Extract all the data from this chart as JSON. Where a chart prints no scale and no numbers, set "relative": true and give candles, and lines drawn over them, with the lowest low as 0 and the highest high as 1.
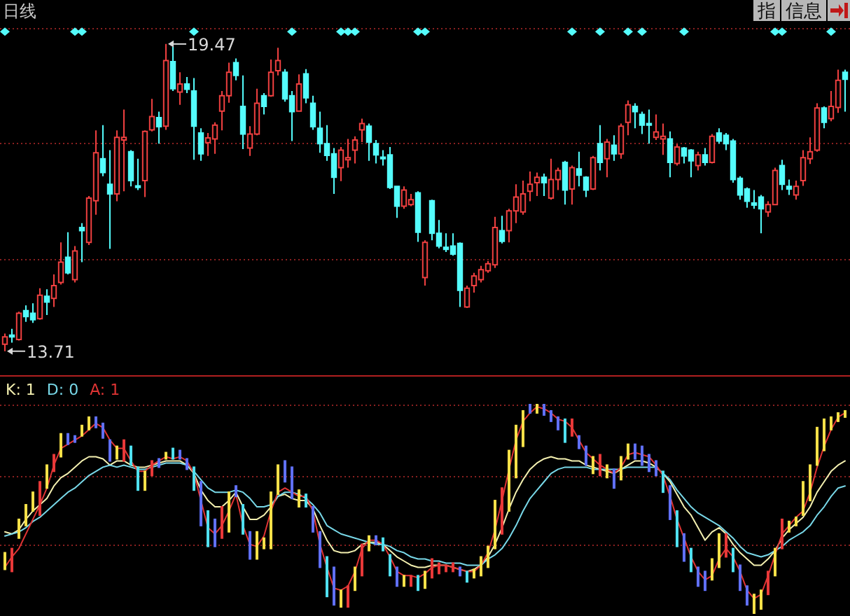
{
  "chart_data": [
    {
      "type": "candlestick",
      "title": "日线",
      "categories": [
        null,
        null,
        null,
        null,
        null,
        null,
        null,
        null,
        null,
        null,
        null,
        null,
        null,
        null,
        null,
        null,
        null,
        null,
        null,
        null,
        null,
        null,
        null,
        null,
        null,
        null,
        null,
        null,
        null,
        null,
        null,
        null,
        null,
        null,
        null,
        null,
        null,
        null,
        null,
        null,
        null,
        null,
        null,
        null,
        null,
        null,
        null,
        null,
        null,
        null,
        null,
        null,
        null,
        null,
        null,
        null,
        null,
        null,
        null,
        null,
        null,
        null,
        null,
        null,
        null,
        null,
        null,
        null,
        null,
        null,
        null,
        null,
        null,
        null,
        null,
        null,
        null,
        null,
        null,
        null,
        null,
        null,
        null,
        null,
        null,
        null,
        null,
        null,
        null,
        null,
        null,
        null,
        null,
        null,
        null,
        null,
        null,
        null,
        null,
        null,
        null,
        null,
        null,
        null,
        null,
        null,
        null,
        null,
        null,
        null,
        null,
        null,
        null,
        null,
        null,
        null,
        null,
        null,
        null,
        null,
        null
      ],
      "ohlc": [
        [
          13.84,
          14.04,
          13.71,
          13.98
        ],
        [
          14.01,
          14.13,
          13.87,
          13.98
        ],
        [
          13.93,
          14.45,
          13.91,
          14.42
        ],
        [
          14.47,
          14.57,
          14.26,
          14.36
        ],
        [
          14.42,
          14.61,
          14.24,
          14.3
        ],
        [
          14.32,
          14.89,
          14.3,
          14.76
        ],
        [
          14.74,
          14.87,
          14.39,
          14.63
        ],
        [
          14.7,
          15.15,
          14.54,
          14.94
        ],
        [
          15.0,
          15.75,
          14.96,
          15.38
        ],
        [
          15.47,
          15.94,
          15.15,
          15.18
        ],
        [
          15.05,
          15.68,
          15.0,
          15.59
        ],
        [
          16.03,
          16.11,
          15.38,
          15.97
        ],
        [
          15.75,
          16.62,
          15.7,
          16.58
        ],
        [
          16.53,
          17.85,
          16.27,
          17.43
        ],
        [
          17.32,
          17.95,
          16.99,
          17.06
        ],
        [
          16.84,
          17.48,
          15.63,
          16.66
        ],
        [
          16.66,
          17.85,
          16.52,
          17.72
        ],
        [
          17.67,
          18.24,
          16.71,
          17.72
        ],
        [
          17.45,
          17.48,
          16.8,
          16.91
        ],
        [
          16.81,
          17.32,
          16.73,
          16.78
        ],
        [
          16.91,
          17.85,
          16.6,
          17.83
        ],
        [
          17.86,
          18.44,
          17.83,
          18.11
        ],
        [
          18.09,
          18.2,
          17.6,
          17.92
        ],
        [
          17.93,
          19.47,
          17.86,
          19.16
        ],
        [
          19.14,
          19.42,
          18.59,
          18.63
        ],
        [
          18.57,
          18.94,
          18.33,
          18.72
        ],
        [
          18.72,
          18.85,
          18.55,
          18.62
        ],
        [
          18.59,
          18.83,
          17.3,
          17.93
        ],
        [
          17.8,
          17.89,
          17.28,
          17.41
        ],
        [
          17.62,
          17.8,
          17.37,
          17.71
        ],
        [
          17.69,
          18.0,
          17.41,
          17.95
        ],
        [
          18.21,
          18.59,
          17.85,
          18.5
        ],
        [
          18.5,
          19.12,
          18.37,
          18.94
        ],
        [
          19.12,
          19.2,
          18.79,
          18.88
        ],
        [
          18.3,
          18.88,
          17.5,
          17.78
        ],
        [
          17.52,
          17.93,
          17.37,
          17.78
        ],
        [
          17.78,
          18.63,
          17.76,
          18.36
        ],
        [
          18.5,
          18.55,
          18.15,
          18.3
        ],
        [
          18.5,
          19.18,
          18.48,
          18.94
        ],
        [
          18.97,
          19.4,
          18.88,
          19.16
        ],
        [
          18.94,
          19.0,
          18.39,
          18.44
        ],
        [
          18.5,
          18.59,
          17.65,
          18.2
        ],
        [
          18.21,
          18.9,
          18.2,
          18.72
        ],
        [
          18.91,
          19.0,
          18.36,
          18.46
        ],
        [
          18.36,
          18.5,
          17.86,
          17.92
        ],
        [
          17.89,
          18.2,
          17.43,
          17.6
        ],
        [
          17.6,
          17.95,
          17.28,
          17.38
        ],
        [
          17.41,
          17.52,
          16.66,
          16.97
        ],
        [
          17.15,
          17.54,
          16.9,
          17.48
        ],
        [
          17.3,
          17.69,
          17.15,
          17.34
        ],
        [
          17.48,
          17.74,
          17.23,
          17.67
        ],
        [
          17.86,
          18.07,
          17.63,
          17.98
        ],
        [
          17.93,
          17.98,
          17.28,
          17.63
        ],
        [
          17.6,
          17.67,
          17.23,
          17.39
        ],
        [
          17.35,
          17.48,
          17.19,
          17.32
        ],
        [
          17.39,
          17.54,
          16.75,
          16.78
        ],
        [
          16.8,
          16.81,
          16.21,
          16.43
        ],
        [
          16.43,
          16.8,
          16.38,
          16.73
        ],
        [
          16.46,
          16.66,
          16.43,
          16.55
        ],
        [
          16.68,
          16.71,
          15.76,
          15.94
        ],
        [
          15.09,
          15.79,
          14.94,
          15.75
        ],
        [
          16.53,
          16.55,
          15.79,
          15.92
        ],
        [
          15.92,
          16.17,
          15.64,
          15.68
        ],
        [
          15.66,
          15.92,
          15.57,
          15.62
        ],
        [
          15.68,
          15.92,
          15.5,
          15.53
        ],
        [
          15.73,
          15.75,
          14.54,
          14.85
        ],
        [
          14.54,
          14.94,
          14.52,
          14.89
        ],
        [
          14.94,
          15.18,
          14.81,
          15.12
        ],
        [
          15.05,
          15.31,
          15.0,
          15.24
        ],
        [
          15.22,
          15.4,
          15.18,
          15.35
        ],
        [
          15.33,
          16.23,
          15.27,
          16.03
        ],
        [
          15.97,
          16.25,
          15.73,
          15.77
        ],
        [
          15.97,
          16.38,
          15.75,
          16.34
        ],
        [
          16.34,
          16.84,
          16.11,
          16.6
        ],
        [
          16.32,
          16.91,
          16.27,
          16.66
        ],
        [
          16.71,
          17.08,
          16.52,
          16.84
        ],
        [
          16.87,
          17.06,
          16.62,
          16.97
        ],
        [
          16.97,
          17.04,
          16.62,
          16.87
        ],
        [
          16.58,
          17.32,
          16.55,
          16.93
        ],
        [
          16.93,
          17.15,
          16.73,
          17.1
        ],
        [
          17.25,
          17.28,
          16.46,
          16.73
        ],
        [
          16.75,
          17.19,
          16.46,
          17.15
        ],
        [
          17.13,
          17.45,
          16.8,
          17.01
        ],
        [
          16.97,
          16.99,
          16.6,
          16.73
        ],
        [
          16.75,
          17.37,
          16.73,
          17.34
        ],
        [
          17.6,
          17.95,
          17.1,
          17.25
        ],
        [
          17.32,
          17.69,
          16.97,
          17.63
        ],
        [
          17.57,
          17.76,
          17.28,
          17.41
        ],
        [
          17.41,
          17.98,
          17.32,
          17.93
        ],
        [
          18.0,
          18.41,
          17.76,
          18.33
        ],
        [
          18.3,
          18.36,
          17.89,
          18.2
        ],
        [
          18.15,
          18.2,
          17.78,
          17.95
        ],
        [
          17.98,
          18.24,
          17.6,
          17.95
        ],
        [
          17.72,
          18.15,
          17.67,
          17.82
        ],
        [
          17.69,
          17.98,
          17.39,
          17.74
        ],
        [
          17.69,
          17.83,
          16.97,
          17.25
        ],
        [
          17.23,
          17.59,
          17.19,
          17.54
        ],
        [
          17.52,
          17.54,
          17.23,
          17.37
        ],
        [
          17.48,
          17.5,
          16.97,
          17.28
        ],
        [
          17.19,
          17.45,
          17.1,
          17.39
        ],
        [
          17.39,
          17.52,
          17.19,
          17.25
        ],
        [
          17.25,
          17.78,
          17.23,
          17.74
        ],
        [
          17.8,
          17.89,
          17.6,
          17.65
        ],
        [
          17.76,
          17.8,
          17.48,
          17.6
        ],
        [
          17.65,
          17.69,
          16.87,
          16.93
        ],
        [
          16.95,
          16.99,
          16.55,
          16.64
        ],
        [
          16.75,
          16.78,
          16.4,
          16.52
        ],
        [
          16.49,
          16.73,
          16.38,
          16.45
        ],
        [
          16.6,
          16.64,
          15.92,
          16.38
        ],
        [
          16.32,
          16.52,
          16.23,
          16.46
        ],
        [
          16.46,
          17.15,
          16.45,
          17.1
        ],
        [
          17.19,
          17.3,
          16.73,
          16.84
        ],
        [
          16.8,
          16.93,
          16.64,
          16.75
        ],
        [
          16.64,
          16.91,
          16.55,
          16.8
        ],
        [
          16.91,
          17.48,
          16.81,
          17.34
        ],
        [
          17.32,
          17.72,
          17.22,
          17.45
        ],
        [
          17.48,
          18.36,
          17.45,
          18.27
        ],
        [
          18.27,
          18.3,
          17.89,
          18.0
        ],
        [
          18.07,
          18.59,
          18.02,
          18.3
        ],
        [
          18.28,
          18.99,
          18.18,
          18.79
        ],
        [
          18.94,
          18.99,
          18.2,
          18.81
        ]
      ],
      "colors": [
        "#f04040",
        "#54fcfc",
        "#f04040",
        "#54fcfc",
        "#54fcfc",
        "#f04040",
        "#54fcfc",
        "#f04040",
        "#f04040",
        "#54fcfc",
        "#f04040",
        "#54fcfc",
        "#f04040",
        "#f04040",
        "#54fcfc",
        "#54fcfc",
        "#f04040",
        "#f04040",
        "#54fcfc",
        "#54fcfc",
        "#f04040",
        "#f04040",
        "#54fcfc",
        "#f04040",
        "#54fcfc",
        "#f04040",
        "#54fcfc",
        "#54fcfc",
        "#54fcfc",
        "#f04040",
        "#f04040",
        "#f04040",
        "#f04040",
        "#54fcfc",
        "#54fcfc",
        "#f04040",
        "#f04040",
        "#54fcfc",
        "#f04040",
        "#f04040",
        "#54fcfc",
        "#54fcfc",
        "#f04040",
        "#54fcfc",
        "#54fcfc",
        "#54fcfc",
        "#54fcfc",
        "#54fcfc",
        "#f04040",
        "#f04040",
        "#f04040",
        "#f04040",
        "#54fcfc",
        "#54fcfc",
        "#54fcfc",
        "#54fcfc",
        "#54fcfc",
        "#f04040",
        "#f04040",
        "#54fcfc",
        "#f04040",
        "#54fcfc",
        "#54fcfc",
        "#54fcfc",
        "#54fcfc",
        "#54fcfc",
        "#f04040",
        "#f04040",
        "#f04040",
        "#f04040",
        "#f04040",
        "#54fcfc",
        "#f04040",
        "#f04040",
        "#f04040",
        "#f04040",
        "#f04040",
        "#54fcfc",
        "#f04040",
        "#f04040",
        "#54fcfc",
        "#f04040",
        "#54fcfc",
        "#54fcfc",
        "#f04040",
        "#54fcfc",
        "#f04040",
        "#54fcfc",
        "#f04040",
        "#f04040",
        "#54fcfc",
        "#54fcfc",
        "#54fcfc",
        "#f04040",
        "#f04040",
        "#54fcfc",
        "#f04040",
        "#54fcfc",
        "#54fcfc",
        "#f04040",
        "#54fcfc",
        "#f04040",
        "#54fcfc",
        "#54fcfc",
        "#54fcfc",
        "#54fcfc",
        "#54fcfc",
        "#54fcfc",
        "#54fcfc",
        "#f04040",
        "#f04040",
        "#54fcfc",
        "#54fcfc",
        "#f04040",
        "#f04040",
        "#f04040",
        "#f04040",
        "#54fcfc",
        "#f04040",
        "#f04040",
        "#54fcfc"
      ],
      "ylim": [
        13.26,
        19.77
      ],
      "yticks": [
        {
          "value": 15.44,
          "label": null
        },
        {
          "value": 17.63,
          "label": null
        },
        {
          "value": 19.77,
          "label": null
        }
      ],
      "grid": "y",
      "series": [
        {
          "type": "scatter",
          "color": "#54fcfc",
          "marker": "diamond",
          "values": [
            19.7,
            null,
            null,
            null,
            null,
            null,
            null,
            null,
            null,
            null,
            19.7,
            19.7,
            null,
            null,
            null,
            null,
            null,
            null,
            null,
            null,
            null,
            null,
            null,
            null,
            null,
            null,
            null,
            19.7,
            null,
            null,
            null,
            null,
            null,
            null,
            null,
            null,
            null,
            null,
            null,
            null,
            null,
            19.7,
            null,
            null,
            null,
            null,
            null,
            null,
            19.7,
            19.7,
            19.7,
            null,
            null,
            null,
            null,
            null,
            null,
            null,
            null,
            19.7,
            19.7,
            null,
            null,
            null,
            null,
            null,
            null,
            null,
            null,
            null,
            null,
            null,
            null,
            null,
            null,
            null,
            null,
            null,
            null,
            null,
            null,
            19.7,
            null,
            null,
            null,
            19.7,
            null,
            null,
            null,
            19.7,
            null,
            19.7,
            null,
            null,
            null,
            null,
            null,
            19.7,
            null,
            null,
            null,
            null,
            null,
            null,
            null,
            null,
            null,
            null,
            null,
            null,
            19.7,
            19.7,
            null,
            null,
            null,
            null,
            null,
            null,
            19.7,
            null,
            null
          ]
        }
      ],
      "annotations": [
        "19.47",
        "13.71",
        "指",
        "信息"
      ]
    },
    {
      "type": "candlestick",
      "relative": true,
      "categories": [
        null,
        null,
        null,
        null,
        null,
        null,
        null,
        null,
        null,
        null,
        null,
        null,
        null,
        null,
        null,
        null,
        null,
        null,
        null,
        null,
        null,
        null,
        null,
        null,
        null,
        null,
        null,
        null,
        null,
        null,
        null,
        null,
        null,
        null,
        null,
        null,
        null,
        null,
        null,
        null,
        null,
        null,
        null,
        null,
        null,
        null,
        null,
        null,
        null,
        null,
        null,
        null,
        null,
        null,
        null,
        null,
        null,
        null,
        null,
        null,
        null,
        null,
        null,
        null,
        null,
        null,
        null,
        null,
        null,
        null,
        null,
        null,
        null,
        null,
        null,
        null,
        null,
        null,
        null,
        null,
        null,
        null,
        null,
        null,
        null,
        null,
        null,
        null,
        null,
        null,
        null,
        null,
        null,
        null,
        null,
        null,
        null,
        null,
        null,
        null,
        null,
        null,
        null,
        null,
        null,
        null,
        null,
        null,
        null,
        null,
        null,
        null,
        null,
        null,
        null,
        null,
        null,
        null,
        null,
        null,
        null
      ],
      "ohlc": [
        [
          0.29,
          0.29,
          0.21,
          0.21
        ],
        [
          0.31,
          0.31,
          0.2,
          0.2
        ],
        [
          0.45,
          0.45,
          0.36,
          0.36
        ],
        [
          0.52,
          0.52,
          0.42,
          0.42
        ],
        [
          0.58,
          0.58,
          0.49,
          0.49
        ],
        [
          0.63,
          0.63,
          0.47,
          0.47
        ],
        [
          0.71,
          0.71,
          0.6,
          0.6
        ],
        [
          0.76,
          0.76,
          0.68,
          0.68
        ],
        [
          0.86,
          0.86,
          0.75,
          0.75
        ],
        [
          0.86,
          0.86,
          0.81,
          0.81
        ],
        [
          0.85,
          0.85,
          0.82,
          0.82
        ],
        [
          0.9,
          0.9,
          0.85,
          0.85
        ],
        [
          0.94,
          0.94,
          0.88,
          0.88
        ],
        [
          0.94,
          0.94,
          0.89,
          0.89
        ],
        [
          0.91,
          0.91,
          0.84,
          0.84
        ],
        [
          0.83,
          0.83,
          0.73,
          0.73
        ],
        [
          0.8,
          0.8,
          0.74,
          0.74
        ],
        [
          0.83,
          0.83,
          0.73,
          0.73
        ],
        [
          0.8,
          0.8,
          0.71,
          0.71
        ],
        [
          0.7,
          0.7,
          0.59,
          0.59
        ],
        [
          0.68,
          0.68,
          0.59,
          0.59
        ],
        [
          0.73,
          0.73,
          0.66,
          0.66
        ],
        [
          0.74,
          0.74,
          0.7,
          0.7
        ],
        [
          0.77,
          0.77,
          0.74,
          0.74
        ],
        [
          0.79,
          0.79,
          0.74,
          0.74
        ],
        [
          0.78,
          0.78,
          0.74,
          0.74
        ],
        [
          0.74,
          0.74,
          0.69,
          0.69
        ],
        [
          0.7,
          0.7,
          0.59,
          0.59
        ],
        [
          0.63,
          0.63,
          0.42,
          0.42
        ],
        [
          0.49,
          0.49,
          0.32,
          0.32
        ],
        [
          0.45,
          0.45,
          0.32,
          0.32
        ],
        [
          0.51,
          0.51,
          0.36,
          0.36
        ],
        [
          0.58,
          0.58,
          0.39,
          0.39
        ],
        [
          0.61,
          0.61,
          0.56,
          0.56
        ],
        [
          0.52,
          0.52,
          0.38,
          0.38
        ],
        [
          0.39,
          0.39,
          0.26,
          0.26
        ],
        [
          0.39,
          0.39,
          0.26,
          0.26
        ],
        [
          0.36,
          0.36,
          0.31,
          0.31
        ],
        [
          0.58,
          0.58,
          0.31,
          0.31
        ],
        [
          0.71,
          0.71,
          0.57,
          0.57
        ],
        [
          0.73,
          0.73,
          0.63,
          0.63
        ],
        [
          0.7,
          0.7,
          0.55,
          0.55
        ],
        [
          0.59,
          0.59,
          0.51,
          0.51
        ],
        [
          0.57,
          0.57,
          0.51,
          0.51
        ],
        [
          0.51,
          0.51,
          0.39,
          0.39
        ],
        [
          0.39,
          0.39,
          0.22,
          0.22
        ],
        [
          0.27,
          0.27,
          0.08,
          0.08
        ],
        [
          0.22,
          0.22,
          0.04,
          0.04
        ],
        [
          0.11,
          0.11,
          0.03,
          0.03
        ],
        [
          0.13,
          0.13,
          0.03,
          0.03
        ],
        [
          0.22,
          0.22,
          0.11,
          0.11
        ],
        [
          0.33,
          0.33,
          0.18,
          0.18
        ],
        [
          0.37,
          0.37,
          0.3,
          0.3
        ],
        [
          0.37,
          0.37,
          0.33,
          0.33
        ],
        [
          0.36,
          0.36,
          0.3,
          0.3
        ],
        [
          0.28,
          0.28,
          0.18,
          0.18
        ],
        [
          0.22,
          0.22,
          0.13,
          0.13
        ],
        [
          0.18,
          0.18,
          0.13,
          0.13
        ],
        [
          0.18,
          0.18,
          0.13,
          0.13
        ],
        [
          0.18,
          0.18,
          0.11,
          0.11
        ],
        [
          0.2,
          0.2,
          0.12,
          0.12
        ],
        [
          0.26,
          0.26,
          0.17,
          0.17
        ],
        [
          0.24,
          0.24,
          0.19,
          0.19
        ],
        [
          0.23,
          0.23,
          0.2,
          0.2
        ],
        [
          0.24,
          0.24,
          0.2,
          0.2
        ],
        [
          0.22,
          0.22,
          0.18,
          0.18
        ],
        [
          0.2,
          0.2,
          0.15,
          0.15
        ],
        [
          0.21,
          0.21,
          0.17,
          0.17
        ],
        [
          0.27,
          0.27,
          0.18,
          0.18
        ],
        [
          0.32,
          0.32,
          0.22,
          0.22
        ],
        [
          0.54,
          0.54,
          0.31,
          0.31
        ],
        [
          0.6,
          0.6,
          0.38,
          0.38
        ],
        [
          0.78,
          0.78,
          0.49,
          0.49
        ],
        [
          0.9,
          0.9,
          0.65,
          0.65
        ],
        [
          0.97,
          0.97,
          0.8,
          0.8
        ],
        [
          1.0,
          1.0,
          0.96,
          0.96
        ],
        [
          1.0,
          1.0,
          0.96,
          0.96
        ],
        [
          1.0,
          1.0,
          0.95,
          0.95
        ],
        [
          0.97,
          0.97,
          0.92,
          0.92
        ],
        [
          0.94,
          0.94,
          0.88,
          0.88
        ],
        [
          0.93,
          0.93,
          0.82,
          0.82
        ],
        [
          0.93,
          0.93,
          0.85,
          0.85
        ],
        [
          0.85,
          0.85,
          0.79,
          0.79
        ],
        [
          0.8,
          0.8,
          0.71,
          0.71
        ],
        [
          0.75,
          0.75,
          0.67,
          0.67
        ],
        [
          0.76,
          0.76,
          0.66,
          0.66
        ],
        [
          0.71,
          0.71,
          0.65,
          0.65
        ],
        [
          0.69,
          0.69,
          0.6,
          0.6
        ],
        [
          0.75,
          0.75,
          0.64,
          0.64
        ],
        [
          0.81,
          0.81,
          0.74,
          0.74
        ],
        [
          0.81,
          0.81,
          0.74,
          0.74
        ],
        [
          0.8,
          0.8,
          0.71,
          0.71
        ],
        [
          0.76,
          0.76,
          0.68,
          0.68
        ],
        [
          0.73,
          0.73,
          0.66,
          0.66
        ],
        [
          0.68,
          0.68,
          0.58,
          0.58
        ],
        [
          0.61,
          0.61,
          0.45,
          0.45
        ],
        [
          0.49,
          0.49,
          0.32,
          0.32
        ],
        [
          0.38,
          0.38,
          0.25,
          0.25
        ],
        [
          0.31,
          0.31,
          0.2,
          0.2
        ],
        [
          0.22,
          0.22,
          0.13,
          0.13
        ],
        [
          0.2,
          0.2,
          0.11,
          0.11
        ],
        [
          0.26,
          0.26,
          0.16,
          0.16
        ],
        [
          0.38,
          0.38,
          0.22,
          0.22
        ],
        [
          0.38,
          0.38,
          0.27,
          0.27
        ],
        [
          0.31,
          0.31,
          0.2,
          0.2
        ],
        [
          0.23,
          0.23,
          0.11,
          0.11
        ],
        [
          0.13,
          0.13,
          0.04,
          0.04
        ],
        [
          0.09,
          0.09,
          0.0,
          0.0
        ],
        [
          0.11,
          0.11,
          0.02,
          0.02
        ],
        [
          0.2,
          0.2,
          0.09,
          0.09
        ],
        [
          0.31,
          0.31,
          0.18,
          0.18
        ],
        [
          0.45,
          0.45,
          0.31,
          0.31
        ],
        [
          0.44,
          0.44,
          0.39,
          0.39
        ],
        [
          0.46,
          0.46,
          0.42,
          0.42
        ],
        [
          0.63,
          0.63,
          0.47,
          0.47
        ],
        [
          0.71,
          0.71,
          0.54,
          0.54
        ],
        [
          0.89,
          0.89,
          0.71,
          0.71
        ],
        [
          0.93,
          0.93,
          0.78,
          0.78
        ],
        [
          0.94,
          0.94,
          0.88,
          0.88
        ],
        [
          0.96,
          0.96,
          0.92,
          0.92
        ],
        [
          0.97,
          0.97,
          0.94,
          0.94
        ]
      ],
      "colors": [
        "#f8e048",
        "#e83838",
        "#f8e048",
        "#f8e048",
        "#f8e048",
        "#e83838",
        "#f8e048",
        "#e83838",
        "#f8e048",
        "#6070ff",
        "#6070ff",
        "#f8e048",
        "#f8e048",
        "#6070ff",
        "#6070ff",
        "#6070ff",
        "#f8e048",
        "#e83838",
        "#50e0f0",
        "#50e0f0",
        "#f8e048",
        "#e83838",
        "#6070ff",
        "#f8e048",
        "#50e0f0",
        "#6070ff",
        "#6070ff",
        "#50e0f0",
        "#6070ff",
        "#50e0f0",
        "#6070ff",
        "#e83838",
        "#f8e048",
        "#6070ff",
        "#50e0f0",
        "#6070ff",
        "#f8e048",
        "#f8e048",
        "#f8e048",
        "#f8e048",
        "#6070ff",
        "#6070ff",
        "#f8e048",
        "#50e0f0",
        "#6070ff",
        "#6070ff",
        "#50e0f0",
        "#6070ff",
        "#f8e048",
        "#e83838",
        "#f8e048",
        "#e83838",
        "#f8e048",
        "#6070ff",
        "#50e0f0",
        "#50e0f0",
        "#6070ff",
        "#f8e048",
        "#e83838",
        "#50e0f0",
        "#f8e048",
        "#e83838",
        "#e83838",
        "#e83838",
        "#e83838",
        "#6070ff",
        "#50e0f0",
        "#f8e048",
        "#f8e048",
        "#f8e048",
        "#f8e048",
        "#e83838",
        "#f8e048",
        "#f8e048",
        "#f8e048",
        "#6070ff",
        "#f8e048",
        "#6070ff",
        "#6070ff",
        "#6070ff",
        "#50e0f0",
        "#e83838",
        "#6070ff",
        "#6070ff",
        "#f8e048",
        "#e83838",
        "#f8e048",
        "#6070ff",
        "#f8e048",
        "#f8e048",
        "#6070ff",
        "#6070ff",
        "#6070ff",
        "#6070ff",
        "#50e0f0",
        "#6070ff",
        "#50e0f0",
        "#6070ff",
        "#50e0f0",
        "#6070ff",
        "#6070ff",
        "#f8e048",
        "#f8e048",
        "#e83838",
        "#50e0f0",
        "#6070ff",
        "#6070ff",
        "#f8e048",
        "#f8e048",
        "#e83838",
        "#f8e048",
        "#e83838",
        "#f8e048",
        "#f8e048",
        "#f8e048",
        "#f8e048",
        "#f8e048",
        "#f8e048",
        "#f8e048",
        "#f8e048",
        "#f8e048"
      ],
      "ref_lines": [
        {
          "axis": "y",
          "value": 1,
          "color": "#8a2020",
          "line_style": "dotted"
        },
        {
          "axis": "y",
          "value": 0.66,
          "color": "#8a2020",
          "line_style": "dotted"
        },
        {
          "axis": "y",
          "value": 0.33,
          "color": "#8a2020",
          "line_style": "dotted"
        }
      ],
      "series": [
        {
          "type": "line",
          "name": "K: 1",
          "color": "#f4f0b0",
          "values": [
            0.39,
            0.38,
            0.4,
            0.45,
            0.49,
            0.52,
            0.55,
            0.61,
            0.65,
            0.67,
            0.7,
            0.73,
            0.75,
            0.75,
            0.74,
            0.71,
            0.73,
            0.73,
            0.71,
            0.7,
            0.7,
            0.71,
            0.72,
            0.73,
            0.73,
            0.73,
            0.71,
            0.67,
            0.59,
            0.54,
            0.51,
            0.51,
            0.54,
            0.58,
            0.51,
            0.45,
            0.45,
            0.47,
            0.51,
            0.56,
            0.57,
            0.55,
            0.54,
            0.54,
            0.5,
            0.42,
            0.35,
            0.3,
            0.29,
            0.29,
            0.3,
            0.33,
            0.34,
            0.34,
            0.33,
            0.3,
            0.27,
            0.25,
            0.23,
            0.22,
            0.22,
            0.23,
            0.23,
            0.23,
            0.22,
            0.21,
            0.2,
            0.21,
            0.23,
            0.27,
            0.33,
            0.41,
            0.5,
            0.58,
            0.64,
            0.69,
            0.72,
            0.74,
            0.75,
            0.74,
            0.74,
            0.73,
            0.73,
            0.71,
            0.7,
            0.69,
            0.68,
            0.67,
            0.69,
            0.71,
            0.73,
            0.73,
            0.72,
            0.7,
            0.67,
            0.63,
            0.57,
            0.51,
            0.47,
            0.41,
            0.35,
            0.39,
            0.41,
            0.38,
            0.33,
            0.29,
            0.26,
            0.23,
            0.23,
            0.26,
            0.3,
            0.36,
            0.4,
            0.43,
            0.46,
            0.51,
            0.58,
            0.63,
            0.68,
            0.71,
            0.73
          ]
        },
        {
          "type": "line",
          "name": "D: 0",
          "color": "#78d8e8",
          "values": [
            0.37,
            0.38,
            0.39,
            0.41,
            0.44,
            0.46,
            0.49,
            0.52,
            0.55,
            0.58,
            0.6,
            0.63,
            0.66,
            0.68,
            0.7,
            0.71,
            0.7,
            0.71,
            0.7,
            0.69,
            0.69,
            0.7,
            0.71,
            0.72,
            0.72,
            0.72,
            0.71,
            0.68,
            0.64,
            0.6,
            0.58,
            0.58,
            0.58,
            0.59,
            0.58,
            0.55,
            0.51,
            0.51,
            0.52,
            0.56,
            0.58,
            0.58,
            0.57,
            0.55,
            0.52,
            0.48,
            0.42,
            0.4,
            0.38,
            0.37,
            0.36,
            0.35,
            0.34,
            0.33,
            0.33,
            0.32,
            0.3,
            0.29,
            0.27,
            0.26,
            0.26,
            0.25,
            0.25,
            0.24,
            0.24,
            0.24,
            0.23,
            0.23,
            0.23,
            0.26,
            0.28,
            0.31,
            0.36,
            0.42,
            0.49,
            0.55,
            0.59,
            0.63,
            0.67,
            0.69,
            0.7,
            0.7,
            0.7,
            0.7,
            0.69,
            0.69,
            0.69,
            0.69,
            0.69,
            0.7,
            0.7,
            0.7,
            0.7,
            0.7,
            0.67,
            0.64,
            0.59,
            0.55,
            0.51,
            0.48,
            0.46,
            0.44,
            0.42,
            0.39,
            0.36,
            0.32,
            0.29,
            0.28,
            0.27,
            0.28,
            0.3,
            0.32,
            0.35,
            0.37,
            0.39,
            0.42,
            0.47,
            0.51,
            0.56,
            0.6,
            0.61
          ]
        },
        {
          "type": "line",
          "name": "A: 1",
          "color": "#e03434",
          "values": [
            0.22,
            0.27,
            0.31,
            0.38,
            0.45,
            0.52,
            0.6,
            0.71,
            0.79,
            0.81,
            0.83,
            0.85,
            0.88,
            0.91,
            0.89,
            0.83,
            0.79,
            0.79,
            0.73,
            0.68,
            0.68,
            0.71,
            0.73,
            0.75,
            0.74,
            0.75,
            0.73,
            0.67,
            0.54,
            0.41,
            0.38,
            0.42,
            0.49,
            0.57,
            0.42,
            0.33,
            0.32,
            0.37,
            0.49,
            0.58,
            0.6,
            0.58,
            0.56,
            0.56,
            0.49,
            0.33,
            0.22,
            0.12,
            0.11,
            0.13,
            0.2,
            0.31,
            0.35,
            0.35,
            0.33,
            0.27,
            0.2,
            0.18,
            0.18,
            0.17,
            0.19,
            0.22,
            0.23,
            0.23,
            0.22,
            0.21,
            0.2,
            0.2,
            0.23,
            0.29,
            0.4,
            0.54,
            0.69,
            0.83,
            0.92,
            0.96,
            0.99,
            0.98,
            0.96,
            0.93,
            0.92,
            0.89,
            0.83,
            0.77,
            0.74,
            0.71,
            0.69,
            0.67,
            0.7,
            0.76,
            0.77,
            0.76,
            0.75,
            0.71,
            0.66,
            0.56,
            0.45,
            0.36,
            0.27,
            0.2,
            0.16,
            0.18,
            0.26,
            0.31,
            0.27,
            0.2,
            0.11,
            0.07,
            0.09,
            0.18,
            0.28,
            0.38,
            0.42,
            0.46,
            0.49,
            0.58,
            0.7,
            0.8,
            0.88,
            0.94,
            0.96
          ]
        }
      ]
    }
  ]
}
